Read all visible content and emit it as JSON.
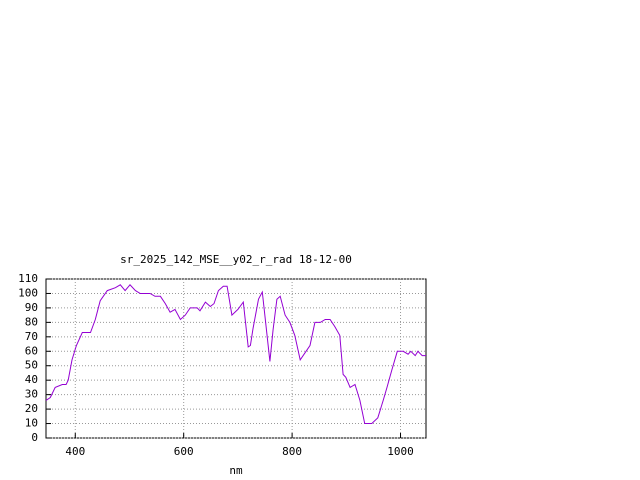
{
  "chart_data": {
    "type": "line",
    "title": "sr_2025_142_MSE__y02_r_rad 18-12-00",
    "x_label": "nm",
    "x": [
      346,
      354,
      363,
      376,
      383,
      387,
      394,
      402,
      413,
      428,
      437,
      446,
      459,
      474,
      483,
      492,
      501,
      511,
      520,
      538,
      547,
      557,
      566,
      575,
      584,
      594,
      603,
      612,
      625,
      630,
      640,
      649,
      656,
      664,
      673,
      680,
      689,
      700,
      710,
      719,
      723,
      728,
      738,
      745,
      750,
      759,
      765,
      772,
      778,
      787,
      796,
      805,
      815,
      824,
      833,
      842,
      852,
      861,
      870,
      879,
      888,
      894,
      899,
      907,
      916,
      925,
      934,
      947,
      958,
      968,
      975,
      984,
      994,
      1005,
      1014,
      1019,
      1027,
      1032,
      1040,
      1047
    ],
    "series": [
      {
        "color": "#9400d3",
        "values": [
          26,
          28,
          35,
          37,
          37,
          40,
          54,
          64,
          73,
          73,
          82,
          95,
          102,
          104,
          106,
          102,
          106,
          102,
          100,
          100,
          98,
          98,
          93,
          87,
          89,
          82,
          85,
          90,
          90,
          88,
          94,
          91,
          93,
          102,
          105,
          105,
          85,
          89,
          94,
          63,
          64,
          76,
          96,
          101,
          84,
          53,
          75,
          96,
          98,
          85,
          80,
          71,
          54,
          59,
          64,
          80,
          80,
          82,
          82,
          77,
          71,
          44,
          42,
          35,
          37,
          26,
          10,
          10,
          14,
          26,
          35,
          47,
          60,
          60,
          58,
          60,
          57,
          60,
          57,
          57
        ]
      }
    ],
    "xlim": [
      346,
      1047
    ],
    "ylim": [
      0,
      110
    ],
    "xticks": [
      400,
      600,
      800,
      1000
    ],
    "yticks": [
      0,
      10,
      20,
      30,
      40,
      50,
      60,
      70,
      80,
      90,
      100,
      110
    ],
    "grid": true
  }
}
